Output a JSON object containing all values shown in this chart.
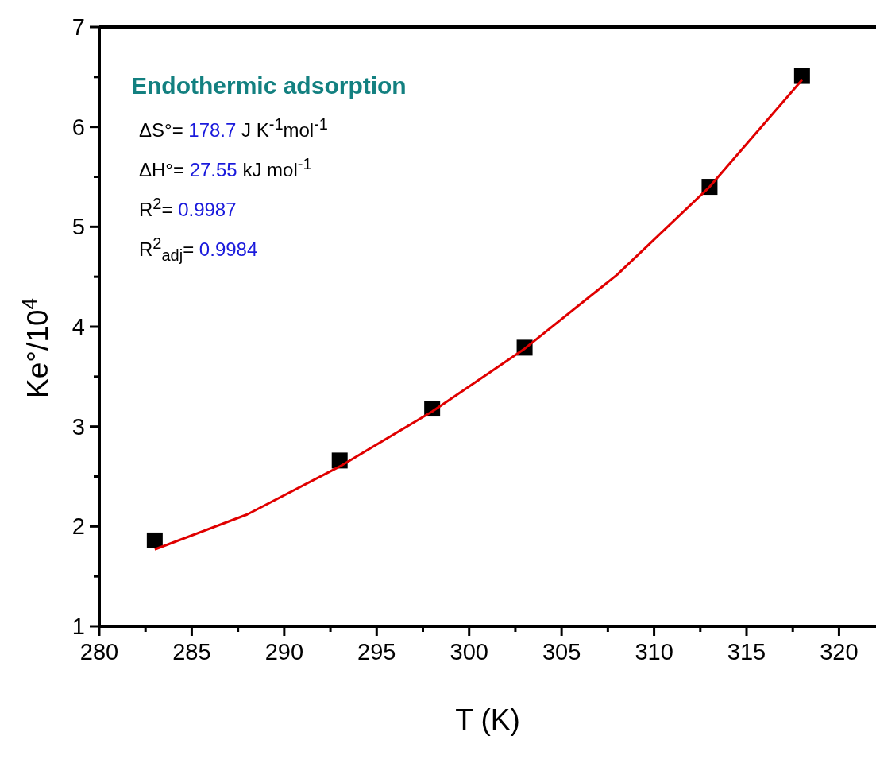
{
  "chart_data": {
    "type": "scatter",
    "xlabel": "T (K)",
    "ylabel": "Ke°/10$^{4}$",
    "annotations": [
      "Endothermic adsorption",
      "ΔS°= 178.7 J K$^{-1}$mol$^{-1}$",
      "ΔH°= 27.55 kJ mol$^{-1}$",
      "R$^{2}$= 0.9987",
      "R$^{2}$$_{adj}$= 0.9984"
    ],
    "series": [
      {
        "color": "#000000",
        "marker": "square",
        "x": [
          283,
          293,
          298,
          303,
          313,
          318
        ],
        "values": [
          1.86,
          2.66,
          3.18,
          3.79,
          5.4,
          6.51
        ]
      },
      {
        "type": "line",
        "color": "#e00000",
        "marker": "none",
        "line_style": "solid",
        "x": [
          283,
          288,
          293,
          298,
          303,
          308,
          313,
          318
        ],
        "values": [
          1.77,
          2.12,
          2.6,
          3.15,
          3.78,
          4.52,
          5.4,
          6.47
        ]
      }
    ],
    "xlim": [
      280,
      322
    ],
    "xticks": [
      280,
      {
        "value": 282.5,
        "label": null
      },
      285,
      {
        "value": 287.5,
        "label": null
      },
      290,
      {
        "value": 292.5,
        "label": null
      },
      295,
      {
        "value": 297.5,
        "label": null
      },
      300,
      {
        "value": 302.5,
        "label": null
      },
      305,
      {
        "value": 307.5,
        "label": null
      },
      310,
      {
        "value": 312.5,
        "label": null
      },
      315,
      {
        "value": 317.5,
        "label": null
      },
      320
    ],
    "ylim": [
      1,
      7
    ],
    "yticks": [
      1,
      {
        "value": 1.5,
        "label": null
      },
      2,
      {
        "value": 2.5,
        "label": null
      },
      3,
      {
        "value": 3.5,
        "label": null
      },
      4,
      {
        "value": 4.5,
        "label": null
      },
      5,
      {
        "value": 5.5,
        "label": null
      },
      6,
      {
        "value": 6.5,
        "label": null
      },
      7
    ],
    "grid": false,
    "legend": false
  }
}
